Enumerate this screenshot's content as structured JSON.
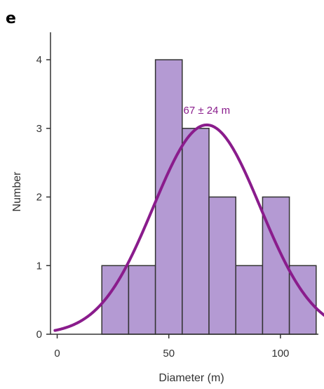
{
  "panel_label": "e",
  "chart_data": {
    "type": "bar",
    "title": "",
    "xlabel": "Diameter (m)",
    "ylabel": "Number",
    "xlim": [
      -3,
      117
    ],
    "ylim": [
      0,
      4.4
    ],
    "x_ticks": [
      0,
      50,
      100
    ],
    "y_ticks": [
      0,
      1,
      2,
      3,
      4
    ],
    "bins": [
      {
        "x0": 20,
        "x1": 32,
        "count": 1
      },
      {
        "x0": 32,
        "x1": 44,
        "count": 1
      },
      {
        "x0": 44,
        "x1": 56,
        "count": 4
      },
      {
        "x0": 56,
        "x1": 68,
        "count": 3
      },
      {
        "x0": 68,
        "x1": 80,
        "count": 2
      },
      {
        "x0": 80,
        "x1": 92,
        "count": 1
      },
      {
        "x0": 92,
        "x1": 104,
        "count": 2
      },
      {
        "x0": 104,
        "x1": 116,
        "count": 1
      }
    ],
    "fit_curve": {
      "type": "gaussian",
      "mean": 67,
      "sd": 24,
      "peak": 3.05
    },
    "annotation": "67 ± 24 m",
    "grid": false,
    "legend": "none",
    "colors": {
      "bar_fill": "#b49ad3",
      "bar_edge": "#333333",
      "curve": "#8a1c8c",
      "axis": "#333333"
    }
  }
}
